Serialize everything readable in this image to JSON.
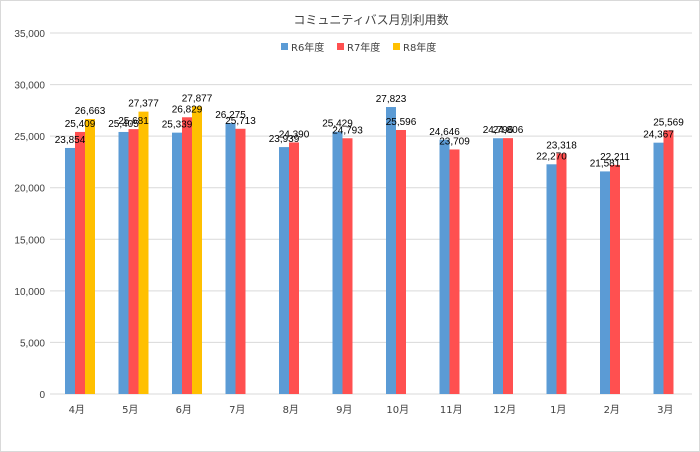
{
  "chart_data": {
    "type": "bar",
    "title": "コミュニティバス月別利用数",
    "categories": [
      "4月",
      "5月",
      "6月",
      "7月",
      "8月",
      "9月",
      "10月",
      "11月",
      "12月",
      "1月",
      "2月",
      "3月"
    ],
    "series": [
      {
        "name": "R6年度",
        "color": "#5b9bd5",
        "values": [
          23854,
          25405,
          25339,
          26275,
          23939,
          25429,
          27823,
          24646,
          24796,
          22270,
          21581,
          24367
        ],
        "labels": [
          "23,854",
          "25,405",
          "25,339",
          "26,275",
          "23,939",
          "25,429",
          "27,823",
          "24,646",
          "24,796",
          "22,270",
          "21,581",
          "24,367"
        ]
      },
      {
        "name": "R7年度",
        "color": "#ff5050",
        "values": [
          25409,
          25681,
          26829,
          25713,
          24390,
          24793,
          25596,
          23709,
          24806,
          23318,
          22211,
          25569
        ],
        "labels": [
          "25,409",
          "25,681",
          "26,829",
          "25,713",
          "24,390",
          "24,793",
          "25,596",
          "23,709",
          "24,806",
          "23,318",
          "22,211",
          "25,569"
        ]
      },
      {
        "name": "R8年度",
        "color": "#ffc000",
        "values": [
          26663,
          27377,
          27877,
          null,
          null,
          null,
          null,
          null,
          null,
          null,
          null,
          null
        ],
        "labels": [
          "26,663",
          "27,377",
          "27,877",
          "",
          "",
          "",
          "",
          "",
          "",
          "",
          "",
          ""
        ]
      }
    ],
    "ylim": [
      0,
      35000
    ],
    "yticks": [
      0,
      5000,
      10000,
      15000,
      20000,
      25000,
      30000,
      35000
    ],
    "ytick_labels": [
      "0",
      "5,000",
      "10,000",
      "15,000",
      "20,000",
      "25,000",
      "30,000",
      "35,000"
    ],
    "grid": true,
    "legend": "top-center"
  }
}
